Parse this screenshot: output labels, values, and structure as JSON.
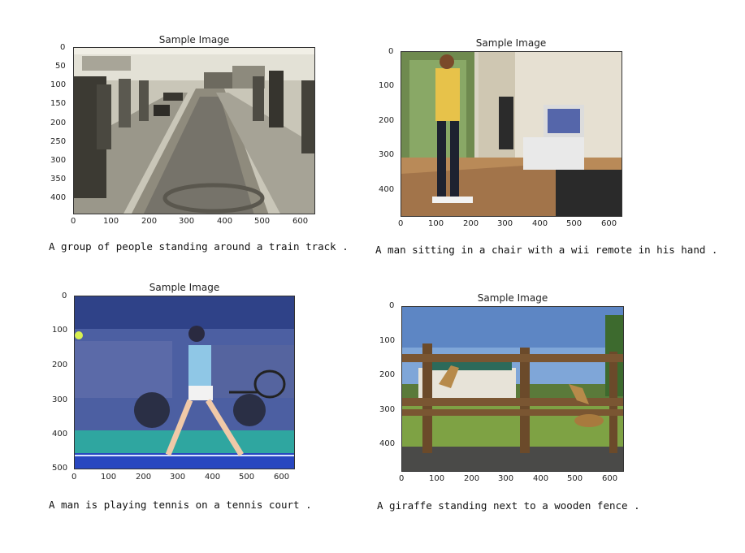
{
  "panels": [
    {
      "title": "Sample Image",
      "caption": "A group of people standing around a train track .",
      "x_ticks": [
        "0",
        "100",
        "200",
        "300",
        "400",
        "500",
        "600"
      ],
      "y_ticks": [
        "0",
        "50",
        "100",
        "150",
        "200",
        "250",
        "300",
        "350",
        "400"
      ],
      "image_subject": "baggage-carousel-photo",
      "tone": "sepia-grayscale"
    },
    {
      "title": "Sample Image",
      "caption": "A man sitting in a chair with a wii remote in his hand .",
      "x_ticks": [
        "0",
        "100",
        "200",
        "300",
        "400",
        "500",
        "600"
      ],
      "y_ticks": [
        "0",
        "100",
        "200",
        "300",
        "400"
      ],
      "image_subject": "person-on-wii-balance-board-photo",
      "tone": "warm-indoor"
    },
    {
      "title": "Sample Image",
      "caption": "A man is playing tennis on a tennis court .",
      "x_ticks": [
        "0",
        "100",
        "200",
        "300",
        "400",
        "500",
        "600"
      ],
      "y_ticks": [
        "0",
        "100",
        "200",
        "300",
        "400",
        "500"
      ],
      "image_subject": "tennis-player-photo",
      "tone": "blue-tinted"
    },
    {
      "title": "Sample Image",
      "caption": "A giraffe standing next to a wooden fence .",
      "x_ticks": [
        "0",
        "100",
        "200",
        "300",
        "400",
        "500",
        "600"
      ],
      "y_ticks": [
        "0",
        "100",
        "200",
        "300",
        "400"
      ],
      "image_subject": "giraffe-behind-fence-photo",
      "tone": "outdoor-sunny"
    }
  ]
}
